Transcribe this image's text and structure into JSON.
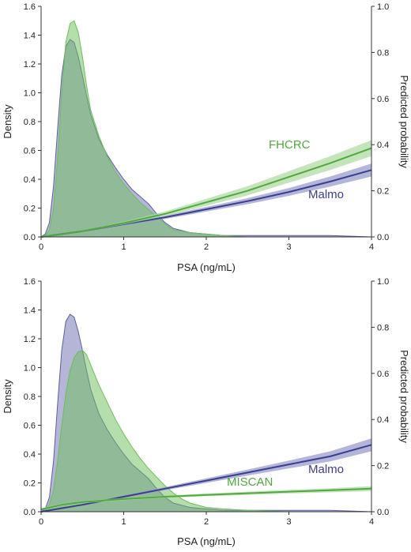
{
  "chart_data": [
    {
      "type": "area",
      "panel": "top",
      "xlabel": "PSA (ng/mL)",
      "ylabel_left": "Density",
      "ylabel_right": "Predicted probability",
      "xlim": [
        0,
        4
      ],
      "ylim_left": [
        0,
        1.6
      ],
      "ylim_right": [
        0,
        1.0
      ],
      "x_ticks": [
        "0",
        "1",
        "2",
        "3",
        "4"
      ],
      "y_left_ticks": [
        "0.0",
        "0.2",
        "0.4",
        "0.6",
        "0.8",
        "1.0",
        "1.2",
        "1.4",
        "1.6"
      ],
      "y_right_ticks": [
        "0.0",
        "0.2",
        "0.4",
        "0.6",
        "0.8",
        "1.0"
      ],
      "grid": false,
      "density_series": [
        {
          "color": "#5b5ea6",
          "x": [
            0,
            0.05,
            0.1,
            0.15,
            0.2,
            0.25,
            0.3,
            0.35,
            0.4,
            0.45,
            0.5,
            0.55,
            0.6,
            0.7,
            0.8,
            0.9,
            1.0,
            1.1,
            1.2,
            1.3,
            1.4,
            1.5,
            1.6,
            1.8,
            2.0,
            2.2,
            2.5,
            3.0,
            3.5,
            4.0
          ],
          "y": [
            0,
            0.02,
            0.1,
            0.35,
            0.75,
            1.12,
            1.32,
            1.37,
            1.35,
            1.25,
            1.12,
            0.98,
            0.85,
            0.68,
            0.57,
            0.48,
            0.4,
            0.33,
            0.28,
            0.23,
            0.16,
            0.1,
            0.06,
            0.03,
            0.02,
            0.01,
            0.01,
            0.01,
            0.01,
            0.0
          ]
        },
        {
          "color": "#6dbd5a",
          "x": [
            0,
            0.05,
            0.1,
            0.15,
            0.2,
            0.25,
            0.3,
            0.35,
            0.4,
            0.45,
            0.5,
            0.55,
            0.6,
            0.7,
            0.8,
            0.9,
            1.0,
            1.1,
            1.2,
            1.3,
            1.4,
            1.5,
            1.6,
            1.8,
            2.0,
            2.2,
            2.5,
            3.0,
            3.5,
            4.0
          ],
          "y": [
            0,
            0.01,
            0.05,
            0.2,
            0.55,
            1.0,
            1.35,
            1.48,
            1.5,
            1.42,
            1.25,
            1.05,
            0.88,
            0.7,
            0.56,
            0.45,
            0.37,
            0.3,
            0.24,
            0.19,
            0.14,
            0.09,
            0.05,
            0.03,
            0.02,
            0.01,
            0.0,
            0.0,
            0.0,
            0.0
          ]
        }
      ],
      "probability_series": [
        {
          "name": "Malmo",
          "color": "#3b3e8f",
          "band_color": "#9a9ccc",
          "x": [
            0,
            0.5,
            1,
            1.5,
            2,
            2.5,
            3,
            3.5,
            4
          ],
          "y": [
            0,
            0.025,
            0.055,
            0.085,
            0.12,
            0.155,
            0.195,
            0.24,
            0.29
          ],
          "lower": [
            0,
            0.022,
            0.05,
            0.078,
            0.11,
            0.142,
            0.178,
            0.218,
            0.262
          ],
          "upper": [
            0,
            0.028,
            0.06,
            0.092,
            0.13,
            0.168,
            0.212,
            0.262,
            0.318
          ]
        },
        {
          "name": "FHCRC",
          "color": "#4faa3e",
          "band_color": "#b3dba6",
          "x": [
            0,
            0.5,
            1,
            1.5,
            2,
            2.5,
            3,
            3.5,
            4
          ],
          "y": [
            0,
            0.025,
            0.06,
            0.1,
            0.15,
            0.2,
            0.26,
            0.32,
            0.385
          ],
          "lower": [
            0,
            0.022,
            0.054,
            0.09,
            0.135,
            0.18,
            0.235,
            0.29,
            0.35
          ],
          "upper": [
            0,
            0.028,
            0.066,
            0.11,
            0.165,
            0.22,
            0.285,
            0.35,
            0.42
          ]
        }
      ]
    },
    {
      "type": "area",
      "panel": "bottom",
      "xlabel": "PSA (ng/mL)",
      "ylabel_left": "Density",
      "ylabel_right": "Predicted probability",
      "xlim": [
        0,
        4
      ],
      "ylim_left": [
        0,
        1.6
      ],
      "ylim_right": [
        0,
        1.0
      ],
      "x_ticks": [
        "0",
        "1",
        "2",
        "3",
        "4"
      ],
      "y_left_ticks": [
        "0.0",
        "0.2",
        "0.4",
        "0.6",
        "0.8",
        "1.0",
        "1.2",
        "1.4",
        "1.6"
      ],
      "y_right_ticks": [
        "0.0",
        "0.2",
        "0.4",
        "0.6",
        "0.8",
        "1.0"
      ],
      "grid": false,
      "density_series": [
        {
          "color": "#5b5ea6",
          "x": [
            0,
            0.05,
            0.1,
            0.15,
            0.2,
            0.25,
            0.3,
            0.35,
            0.4,
            0.45,
            0.5,
            0.55,
            0.6,
            0.7,
            0.8,
            0.9,
            1.0,
            1.1,
            1.2,
            1.3,
            1.4,
            1.5,
            1.6,
            1.8,
            2.0,
            2.2,
            2.5,
            3.0,
            3.5,
            4.0
          ],
          "y": [
            0,
            0.02,
            0.1,
            0.35,
            0.75,
            1.12,
            1.32,
            1.37,
            1.35,
            1.25,
            1.12,
            0.98,
            0.85,
            0.68,
            0.57,
            0.48,
            0.4,
            0.33,
            0.28,
            0.23,
            0.16,
            0.1,
            0.06,
            0.03,
            0.02,
            0.01,
            0.01,
            0.01,
            0.01,
            0.0
          ]
        },
        {
          "color": "#6dbd5a",
          "x": [
            0,
            0.05,
            0.1,
            0.15,
            0.2,
            0.25,
            0.3,
            0.35,
            0.4,
            0.45,
            0.5,
            0.55,
            0.6,
            0.7,
            0.8,
            0.9,
            1.0,
            1.1,
            1.2,
            1.3,
            1.4,
            1.5,
            1.6,
            1.7,
            1.8,
            2.0,
            2.2,
            2.5,
            3.0,
            3.5,
            4.0
          ],
          "y": [
            0,
            0.01,
            0.05,
            0.15,
            0.35,
            0.6,
            0.82,
            0.98,
            1.07,
            1.11,
            1.12,
            1.09,
            1.02,
            0.88,
            0.76,
            0.64,
            0.54,
            0.45,
            0.37,
            0.3,
            0.24,
            0.18,
            0.13,
            0.09,
            0.06,
            0.03,
            0.02,
            0.01,
            0.0,
            0.0,
            0.0
          ]
        }
      ],
      "probability_series": [
        {
          "name": "Malmo",
          "color": "#3b3e8f",
          "band_color": "#9a9ccc",
          "x": [
            0,
            0.5,
            1,
            1.5,
            2,
            2.5,
            3,
            3.5,
            4
          ],
          "y": [
            0,
            0.03,
            0.065,
            0.1,
            0.135,
            0.17,
            0.205,
            0.24,
            0.29
          ],
          "lower": [
            0,
            0.027,
            0.06,
            0.093,
            0.125,
            0.157,
            0.188,
            0.218,
            0.262
          ],
          "upper": [
            0,
            0.033,
            0.07,
            0.107,
            0.145,
            0.183,
            0.222,
            0.262,
            0.318
          ]
        },
        {
          "name": "MISCAN",
          "color": "#4faa3e",
          "band_color": "#b3dba6",
          "x": [
            0,
            0.25,
            0.5,
            1,
            1.5,
            2,
            2.5,
            3,
            3.5,
            4
          ],
          "y": [
            0.01,
            0.03,
            0.042,
            0.055,
            0.065,
            0.073,
            0.08,
            0.087,
            0.093,
            0.1
          ],
          "lower": [
            0.005,
            0.025,
            0.037,
            0.05,
            0.06,
            0.067,
            0.073,
            0.079,
            0.084,
            0.089
          ],
          "upper": [
            0.015,
            0.035,
            0.047,
            0.06,
            0.07,
            0.079,
            0.087,
            0.095,
            0.102,
            0.111
          ]
        }
      ]
    }
  ],
  "colors": {
    "density_blue_fill": "#5b5ea6",
    "density_green_fill": "#6dbd5a",
    "malmo_line": "#3b3e8f",
    "green_line": "#4faa3e"
  }
}
